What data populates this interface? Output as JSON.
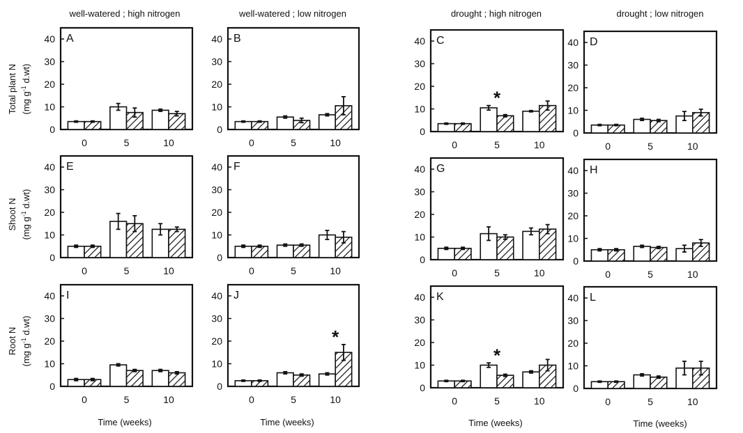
{
  "colors": {
    "open_bar": "#ffffff",
    "hatched_bar": "#ffffff",
    "ink": "#111111"
  },
  "column_titles": [
    "well-watered ; high nitrogen",
    "well-watered ; low  nitrogen",
    "drought ; high nitrogen",
    "drought ; low  nitrogen"
  ],
  "row_labels": [
    {
      "line1": "Total plant N",
      "line2_pre": "(mg g",
      "line2_sup": "-1",
      "line2_post": " d.wt)"
    },
    {
      "line1": "Shoot N",
      "line2_pre": "(mg g",
      "line2_sup": "-1",
      "line2_post": " d.wt)"
    },
    {
      "line1": "Root N",
      "line2_pre": "(mg g",
      "line2_sup": "-1",
      "line2_post": " d.wt)"
    }
  ],
  "xlabel": "Time (weeks)",
  "chart_data": [
    {
      "type": "bar",
      "panel": "A",
      "row": 0,
      "col": 0,
      "categories": [
        "0",
        "5",
        "10"
      ],
      "series": [
        {
          "values": [
            3.5,
            10,
            8.5
          ],
          "errors": [
            0.3,
            1.5,
            0.5
          ]
        },
        {
          "values": [
            3.5,
            7.5,
            7
          ],
          "errors": [
            0.3,
            2,
            1
          ]
        }
      ],
      "ylim": [
        0,
        40
      ],
      "yticks": [
        "0",
        "10",
        "20",
        "30",
        "40"
      ],
      "significance": []
    },
    {
      "type": "bar",
      "panel": "B",
      "row": 0,
      "col": 1,
      "categories": [
        "0",
        "5",
        "10"
      ],
      "series": [
        {
          "values": [
            3.5,
            5.5,
            6.5
          ],
          "errors": [
            0.3,
            0.5,
            0.5
          ]
        },
        {
          "values": [
            3.5,
            4,
            10.5
          ],
          "errors": [
            0.3,
            1,
            4
          ]
        }
      ],
      "ylim": [
        0,
        40
      ],
      "yticks": [
        "0",
        "10",
        "20",
        "30",
        "40"
      ],
      "significance": []
    },
    {
      "type": "bar",
      "panel": "C",
      "row": 0,
      "col": 2,
      "categories": [
        "0",
        "5",
        "10"
      ],
      "series": [
        {
          "values": [
            3.5,
            10.5,
            9
          ],
          "errors": [
            0.3,
            1,
            0.3
          ]
        },
        {
          "values": [
            3.5,
            7,
            11.5
          ],
          "errors": [
            0.3,
            0.5,
            2
          ]
        }
      ],
      "ylim": [
        0,
        40
      ],
      "yticks": [
        "0",
        "10",
        "20",
        "30",
        "40"
      ],
      "significance": [
        {
          "category": "5",
          "label": "*"
        }
      ]
    },
    {
      "type": "bar",
      "panel": "D",
      "row": 0,
      "col": 3,
      "categories": [
        "0",
        "5",
        "10"
      ],
      "series": [
        {
          "values": [
            3.5,
            6,
            7.5
          ],
          "errors": [
            0.3,
            0.5,
            2
          ]
        },
        {
          "values": [
            3.5,
            5.5,
            9
          ],
          "errors": [
            0.3,
            0.5,
            1.5
          ]
        }
      ],
      "ylim": [
        0,
        40
      ],
      "yticks": [
        "0",
        "10",
        "20",
        "30",
        "40"
      ],
      "significance": []
    },
    {
      "type": "bar",
      "panel": "E",
      "row": 1,
      "col": 0,
      "categories": [
        "0",
        "5",
        "10"
      ],
      "series": [
        {
          "values": [
            5,
            16,
            12.5
          ],
          "errors": [
            0.5,
            3.5,
            2.5
          ]
        },
        {
          "values": [
            5,
            15,
            12.5
          ],
          "errors": [
            0.5,
            3.5,
            1
          ]
        }
      ],
      "ylim": [
        0,
        40
      ],
      "yticks": [
        "0",
        "10",
        "20",
        "30",
        "40"
      ],
      "significance": []
    },
    {
      "type": "bar",
      "panel": "F",
      "row": 1,
      "col": 1,
      "categories": [
        "0",
        "5",
        "10"
      ],
      "series": [
        {
          "values": [
            5,
            5.5,
            10
          ],
          "errors": [
            0.5,
            0.5,
            2
          ]
        },
        {
          "values": [
            5,
            5.5,
            9
          ],
          "errors": [
            0.5,
            0.5,
            2.5
          ]
        }
      ],
      "ylim": [
        0,
        40
      ],
      "yticks": [
        "0",
        "10",
        "20",
        "30",
        "40"
      ],
      "significance": []
    },
    {
      "type": "bar",
      "panel": "G",
      "row": 1,
      "col": 2,
      "categories": [
        "0",
        "5",
        "10"
      ],
      "series": [
        {
          "values": [
            5,
            11.5,
            12.5
          ],
          "errors": [
            0.5,
            3,
            1.5
          ]
        },
        {
          "values": [
            5,
            10,
            13.5
          ],
          "errors": [
            0.5,
            1,
            2
          ]
        }
      ],
      "ylim": [
        0,
        40
      ],
      "yticks": [
        "0",
        "10",
        "20",
        "30",
        "40"
      ],
      "significance": []
    },
    {
      "type": "bar",
      "panel": "H",
      "row": 1,
      "col": 3,
      "categories": [
        "0",
        "5",
        "10"
      ],
      "series": [
        {
          "values": [
            5,
            6.5,
            5.5
          ],
          "errors": [
            0.5,
            0.5,
            1.5
          ]
        },
        {
          "values": [
            5,
            6,
            8
          ],
          "errors": [
            0.5,
            0.5,
            1.5
          ]
        }
      ],
      "ylim": [
        0,
        40
      ],
      "yticks": [
        "0",
        "10",
        "20",
        "30",
        "40"
      ],
      "significance": []
    },
    {
      "type": "bar",
      "panel": "I",
      "row": 2,
      "col": 0,
      "categories": [
        "0",
        "5",
        "10"
      ],
      "series": [
        {
          "values": [
            3,
            9.5,
            7
          ],
          "errors": [
            0.5,
            0.5,
            0.5
          ]
        },
        {
          "values": [
            3,
            7,
            6
          ],
          "errors": [
            0.5,
            0.5,
            0.5
          ]
        }
      ],
      "ylim": [
        0,
        40
      ],
      "yticks": [
        "0",
        "10",
        "20",
        "30",
        "40"
      ],
      "significance": []
    },
    {
      "type": "bar",
      "panel": "J",
      "row": 2,
      "col": 1,
      "categories": [
        "0",
        "5",
        "10"
      ],
      "series": [
        {
          "values": [
            2.5,
            6,
            5.5
          ],
          "errors": [
            0.3,
            0.5,
            0.5
          ]
        },
        {
          "values": [
            2.5,
            5,
            15
          ],
          "errors": [
            0.3,
            0.5,
            3.5
          ]
        }
      ],
      "ylim": [
        0,
        40
      ],
      "yticks": [
        "0",
        "10",
        "20",
        "30",
        "40"
      ],
      "significance": [
        {
          "category": "10",
          "label": "*"
        }
      ]
    },
    {
      "type": "bar",
      "panel": "K",
      "row": 2,
      "col": 2,
      "categories": [
        "0",
        "5",
        "10"
      ],
      "series": [
        {
          "values": [
            3,
            10,
            7
          ],
          "errors": [
            0.3,
            1,
            0.5
          ]
        },
        {
          "values": [
            3,
            5.5,
            10
          ],
          "errors": [
            0.3,
            0.5,
            2.5
          ]
        }
      ],
      "ylim": [
        0,
        40
      ],
      "yticks": [
        "0",
        "10",
        "20",
        "30",
        "40"
      ],
      "significance": [
        {
          "category": "5",
          "label": "*"
        }
      ]
    },
    {
      "type": "bar",
      "panel": "L",
      "row": 2,
      "col": 3,
      "categories": [
        "0",
        "5",
        "10"
      ],
      "series": [
        {
          "values": [
            3,
            6,
            9
          ],
          "errors": [
            0.3,
            0.5,
            3
          ]
        },
        {
          "values": [
            3,
            5,
            9
          ],
          "errors": [
            0.3,
            0.5,
            3
          ]
        }
      ],
      "ylim": [
        0,
        40
      ],
      "yticks": [
        "0",
        "10",
        "20",
        "30",
        "40"
      ],
      "significance": []
    }
  ]
}
